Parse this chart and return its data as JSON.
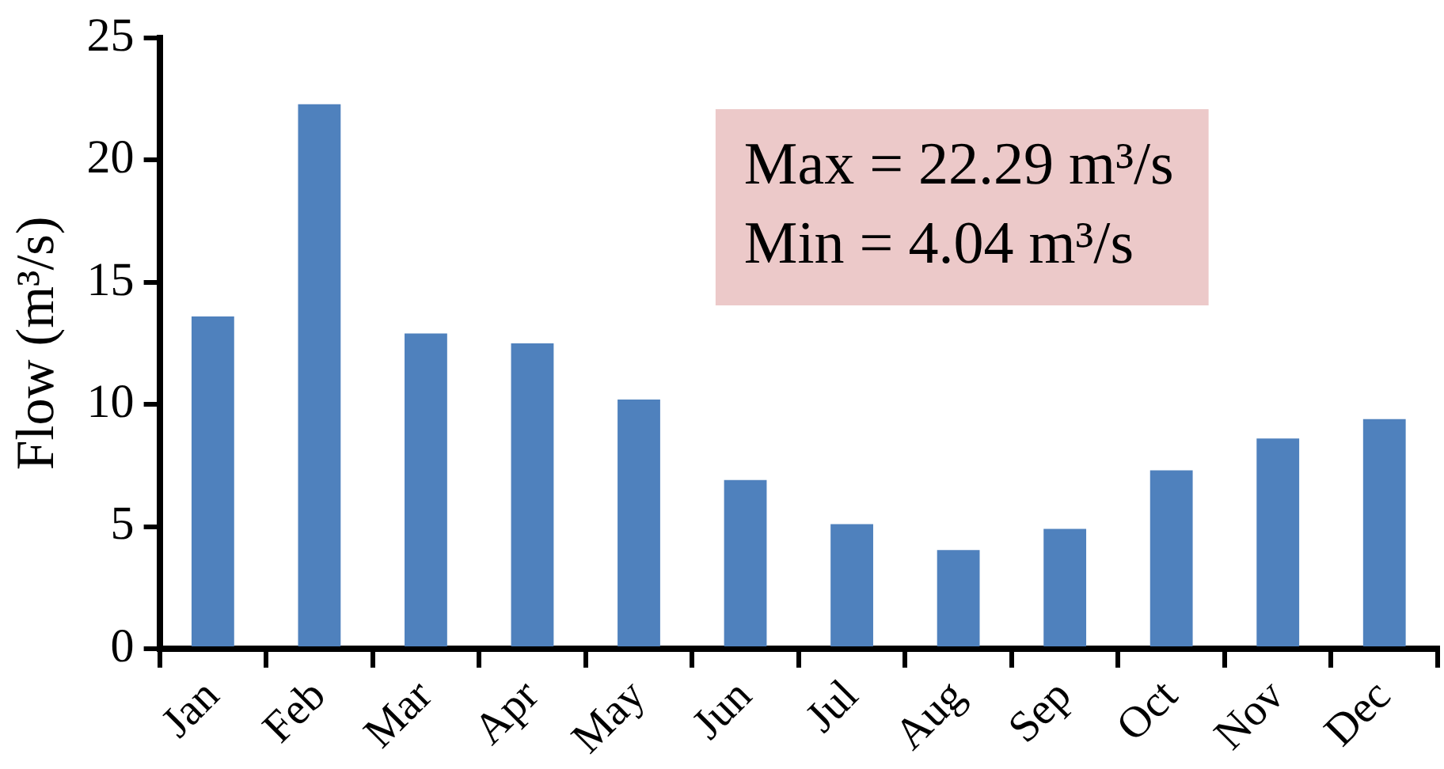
{
  "chart_data": {
    "type": "bar",
    "ylabel": "Flow (m³/s)",
    "categories": [
      "Jan",
      "Feb",
      "Mar",
      "Apr",
      "May",
      "Jun",
      "Jul",
      "Aug",
      "Sep",
      "Oct",
      "Nov",
      "Dec"
    ],
    "values": [
      13.6,
      22.29,
      12.9,
      12.5,
      10.2,
      6.9,
      5.1,
      4.04,
      4.9,
      7.3,
      8.6,
      9.4
    ],
    "color": "#4f81bd",
    "ylim": [
      0,
      25
    ],
    "yticks": [
      0,
      5,
      10,
      15,
      20,
      25
    ],
    "grid": false,
    "legend": false,
    "annotations": [
      "Max = 22.29 m³/s",
      "Min = 4.04 m³/s"
    ]
  }
}
